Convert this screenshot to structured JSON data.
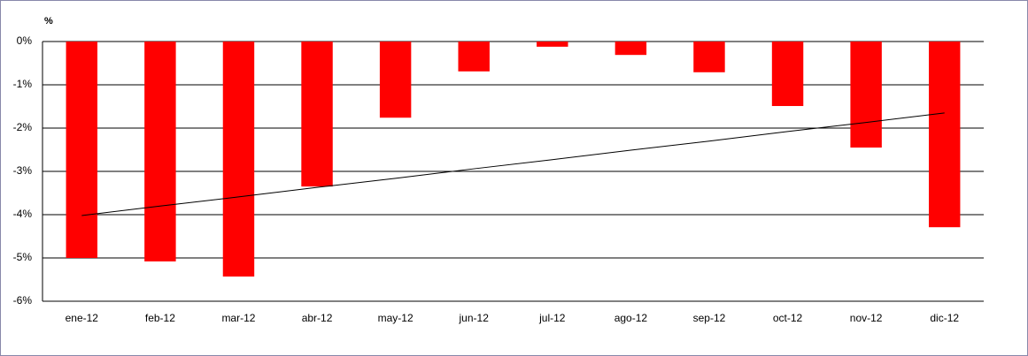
{
  "chart_data": {
    "type": "bar",
    "y_label": "%",
    "categories": [
      "ene-12",
      "feb-12",
      "mar-12",
      "abr-12",
      "may-12",
      "jun-12",
      "jul-12",
      "ago-12",
      "sep-12",
      "oct-12",
      "nov-12",
      "dic-12"
    ],
    "values": [
      -5.0,
      -5.08,
      -5.43,
      -3.35,
      -1.76,
      -0.69,
      -0.12,
      -0.31,
      -0.71,
      -1.49,
      -2.45,
      -4.29
    ],
    "color": "#ff0000",
    "trendline": {
      "color": "#000000",
      "values": [
        -4.02,
        -3.8,
        -3.59,
        -3.37,
        -3.16,
        -2.94,
        -2.73,
        -2.51,
        -2.3,
        -2.08,
        -1.87,
        -1.65
      ]
    },
    "ylim": [
      -6,
      0
    ],
    "yticks": [
      {
        "value": 0,
        "label": "0%"
      },
      {
        "value": -1,
        "label": "-1%"
      },
      {
        "value": -2,
        "label": "-2%"
      },
      {
        "value": -3,
        "label": "-3%"
      },
      {
        "value": -4,
        "label": "-4%"
      },
      {
        "value": -5,
        "label": "-5%"
      },
      {
        "value": -6,
        "label": "-6%"
      }
    ],
    "grid": true
  }
}
